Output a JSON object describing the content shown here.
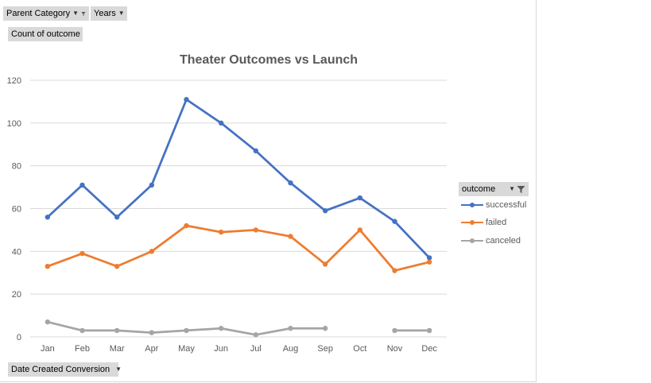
{
  "fields": {
    "parent_category": "Parent Category",
    "years": "Years",
    "count_of_outcome": "Count of outcome",
    "date_created": "Date Created Conversion",
    "outcome": "outcome"
  },
  "colors": {
    "successful": "#4472c4",
    "failed": "#ed7d31",
    "canceled": "#a5a5a5",
    "grid": "#d9d9d9"
  },
  "chart_data": {
    "type": "line",
    "title": "Theater Outcomes vs Launch",
    "xlabel": "",
    "ylabel": "",
    "ylim": [
      0,
      120
    ],
    "yticks": [
      0,
      20,
      40,
      60,
      80,
      100,
      120
    ],
    "categories": [
      "Jan",
      "Feb",
      "Mar",
      "Apr",
      "May",
      "Jun",
      "Jul",
      "Aug",
      "Sep",
      "Oct",
      "Nov",
      "Dec"
    ],
    "grid": true,
    "legend_position": "right",
    "series": [
      {
        "name": "successful",
        "color": "#4472c4",
        "values": [
          56,
          71,
          56,
          71,
          111,
          100,
          87,
          72,
          59,
          65,
          54,
          37
        ]
      },
      {
        "name": "failed",
        "color": "#ed7d31",
        "values": [
          33,
          39,
          33,
          40,
          52,
          49,
          50,
          47,
          34,
          50,
          31,
          35
        ]
      },
      {
        "name": "canceled",
        "color": "#a5a5a5",
        "values": [
          7,
          3,
          3,
          2,
          3,
          4,
          1,
          4,
          4,
          null,
          3,
          3
        ]
      }
    ]
  }
}
